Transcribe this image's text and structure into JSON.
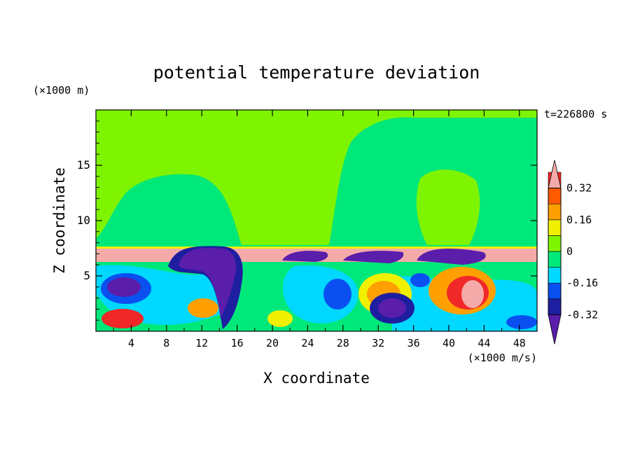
{
  "chart_data": {
    "type": "heatmap",
    "title": "potential temperature deviation",
    "xlabel": "X coordinate",
    "ylabel": "Z coordinate",
    "x_unit": "(×1000 m/s)",
    "y_unit": "(×1000 m)",
    "time_label": "t=226800 s",
    "xlim": [
      0,
      50
    ],
    "ylim": [
      0,
      20
    ],
    "x_ticks": [
      4,
      8,
      12,
      16,
      20,
      24,
      28,
      32,
      36,
      40,
      44,
      48
    ],
    "y_ticks": [
      5,
      10,
      15
    ],
    "colorbar": {
      "levels": [
        -0.4,
        -0.32,
        -0.24,
        -0.16,
        -0.08,
        0,
        0.08,
        0.16,
        0.24,
        0.32,
        0.4
      ],
      "labels": [
        "-0.32",
        "-0.16",
        "0",
        "0.16",
        "0.32"
      ],
      "label_values": [
        -0.32,
        -0.16,
        0,
        0.16,
        0.32
      ],
      "colors": [
        "#5a1eaa",
        "#1e1ea0",
        "#0a50f0",
        "#00d8ff",
        "#00e87a",
        "#7ff400",
        "#f0f000",
        "#ffa000",
        "#ff5a00",
        "#f02828",
        "#f5aaaa"
      ],
      "extend": "both"
    }
  }
}
